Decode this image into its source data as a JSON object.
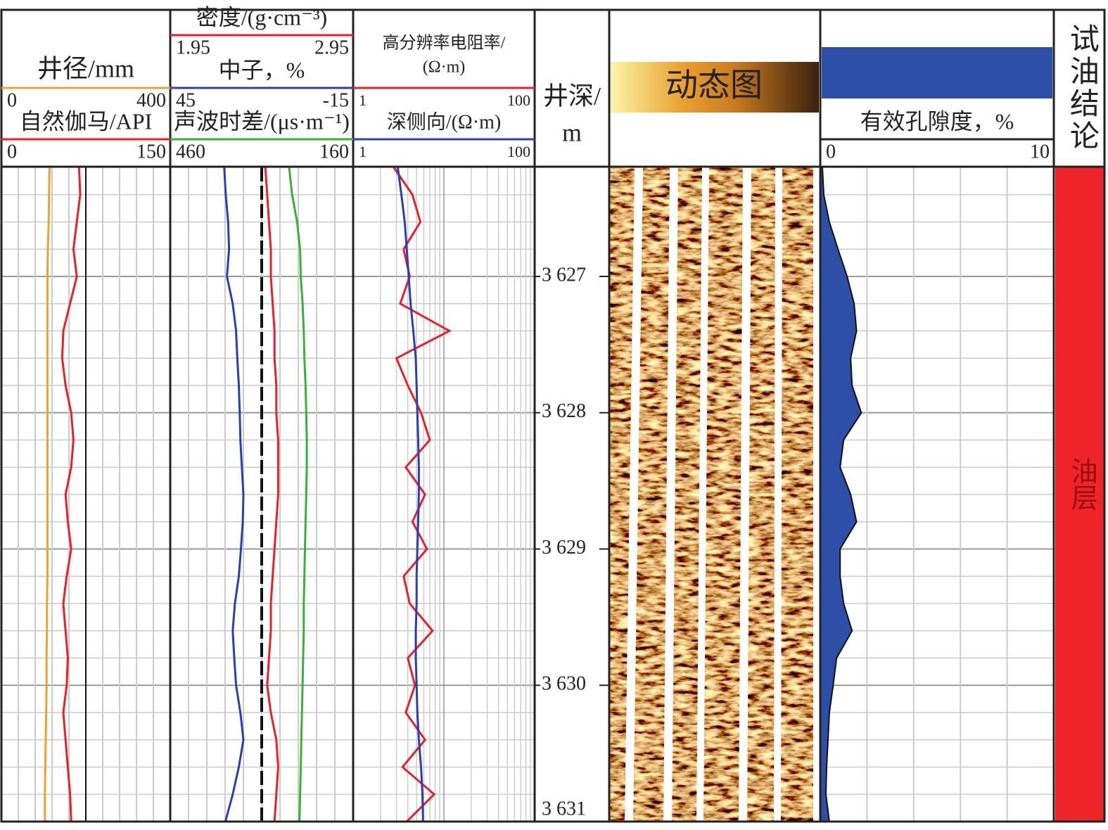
{
  "depth": {
    "values": [
      3626.2,
      3626.4,
      3626.6,
      3626.8,
      3627.0,
      3627.2,
      3627.4,
      3627.6,
      3627.8,
      3628.0,
      3628.2,
      3628.4,
      3628.6,
      3628.8,
      3629.0,
      3629.2,
      3629.4,
      3629.6,
      3629.8,
      3630.0,
      3630.2,
      3630.4,
      3630.6,
      3630.8,
      3631.0
    ],
    "ylim": [
      3626.2,
      3631
    ]
  },
  "chart_data": [
    {
      "type": "line",
      "series": [
        {
          "name": "井径/mm",
          "color": "#f0a030",
          "xlim": [
            0,
            400
          ],
          "values": [
            114,
            113,
            112,
            110,
            109,
            109,
            109,
            109,
            109,
            109,
            109,
            109,
            109,
            109,
            109,
            109,
            108,
            108,
            107,
            107,
            106,
            105,
            104,
            103,
            103
          ]
        },
        {
          "name": "自然伽马/API",
          "color": "#e8202a",
          "xlim": [
            0,
            150
          ],
          "values": [
            69,
            70,
            67,
            64,
            67,
            61,
            55,
            54,
            57,
            62,
            64,
            62,
            57,
            59,
            62,
            58,
            55,
            57,
            59,
            58,
            55,
            57,
            59,
            61,
            62
          ]
        }
      ]
    },
    {
      "type": "line",
      "series": [
        {
          "name": "密度/(g·cm⁻³)",
          "color": "#e8202a",
          "xlim": [
            1.95,
            2.95
          ],
          "values": [
            2.47,
            2.48,
            2.49,
            2.5,
            2.5,
            2.51,
            2.52,
            2.52,
            2.53,
            2.53,
            2.54,
            2.54,
            2.54,
            2.53,
            2.52,
            2.51,
            2.5,
            2.5,
            2.49,
            2.48,
            2.5,
            2.53,
            2.54,
            2.53,
            2.52
          ]
        },
        {
          "name": "中子，%",
          "color": "#2a3fb0",
          "xlim": [
            45,
            -15
          ],
          "values": [
            27.3,
            26.8,
            26.0,
            25.7,
            26.4,
            24.5,
            23.4,
            23.0,
            22.5,
            22.2,
            22.0,
            21.5,
            21.0,
            21.2,
            21.8,
            22.5,
            23.8,
            24.5,
            24.0,
            23.4,
            22.0,
            21.0,
            22.5,
            24.5,
            26.9
          ]
        },
        {
          "name": "声波时差/(μs·m⁻¹)",
          "color": "#3ab03a",
          "xlim": [
            460,
            160
          ],
          "values": [
            265,
            260,
            252,
            247,
            246,
            243,
            241,
            240,
            238,
            237,
            236,
            236,
            237,
            238,
            239,
            240,
            241,
            241,
            242,
            243,
            244,
            245,
            246,
            247,
            248
          ]
        }
      ]
    },
    {
      "type": "line",
      "log": true,
      "series": [
        {
          "name": [
            "高分辨率电阻率/",
            "(Ω·m)"
          ],
          "color": "#e8202a",
          "xlim": [
            1,
            100
          ],
          "values": [
            2.8,
            4.5,
            5.5,
            3.6,
            4.2,
            3.3,
            11.5,
            3.0,
            4.0,
            5.6,
            7.0,
            3.8,
            6.2,
            4.5,
            6.5,
            3.6,
            4.2,
            7.5,
            4.0,
            4.8,
            3.8,
            6.2,
            3.5,
            7.8,
            3.9
          ]
        },
        {
          "name": "深侧向/(Ω·m)",
          "color": "#2a3fb0",
          "xlim": [
            1,
            100
          ],
          "values": [
            3.1,
            3.4,
            3.7,
            3.9,
            4.1,
            4.3,
            4.6,
            4.9,
            5.0,
            5.1,
            5.2,
            5.3,
            5.3,
            5.2,
            5.1,
            5.0,
            5.0,
            4.9,
            4.9,
            5.0,
            5.1,
            5.3,
            5.6,
            5.8,
            5.9
          ]
        }
      ]
    },
    {
      "type": "depth",
      "label": "井深/",
      "unit": "m",
      "yticks": [
        {
          "value": 3627,
          "label": "3 627"
        },
        {
          "value": 3628,
          "label": "3 628"
        },
        {
          "value": 3629,
          "label": "3 629"
        },
        {
          "value": 3630,
          "label": "3 630"
        },
        {
          "value": 3631,
          "label": "3 631"
        }
      ]
    },
    {
      "type": "image",
      "title": "动态图"
    },
    {
      "type": "area",
      "series": [
        {
          "name": "有效孔隙度，%",
          "color": "#2e4fa8",
          "xlim": [
            0,
            10
          ],
          "values": [
            0.09,
            0.15,
            0.39,
            0.76,
            1.15,
            1.45,
            1.55,
            1.3,
            1.36,
            1.76,
            1.0,
            0.85,
            1.3,
            1.55,
            0.85,
            0.85,
            1.0,
            1.36,
            0.7,
            0.55,
            0.39,
            0.33,
            0.27,
            0.24,
            0.39
          ]
        }
      ]
    },
    {
      "type": "interval",
      "title": "试油结论",
      "intervals": [
        {
          "top": 3626.2,
          "bottom": 3631,
          "label": "油层",
          "color": "#ee2428"
        }
      ]
    }
  ]
}
